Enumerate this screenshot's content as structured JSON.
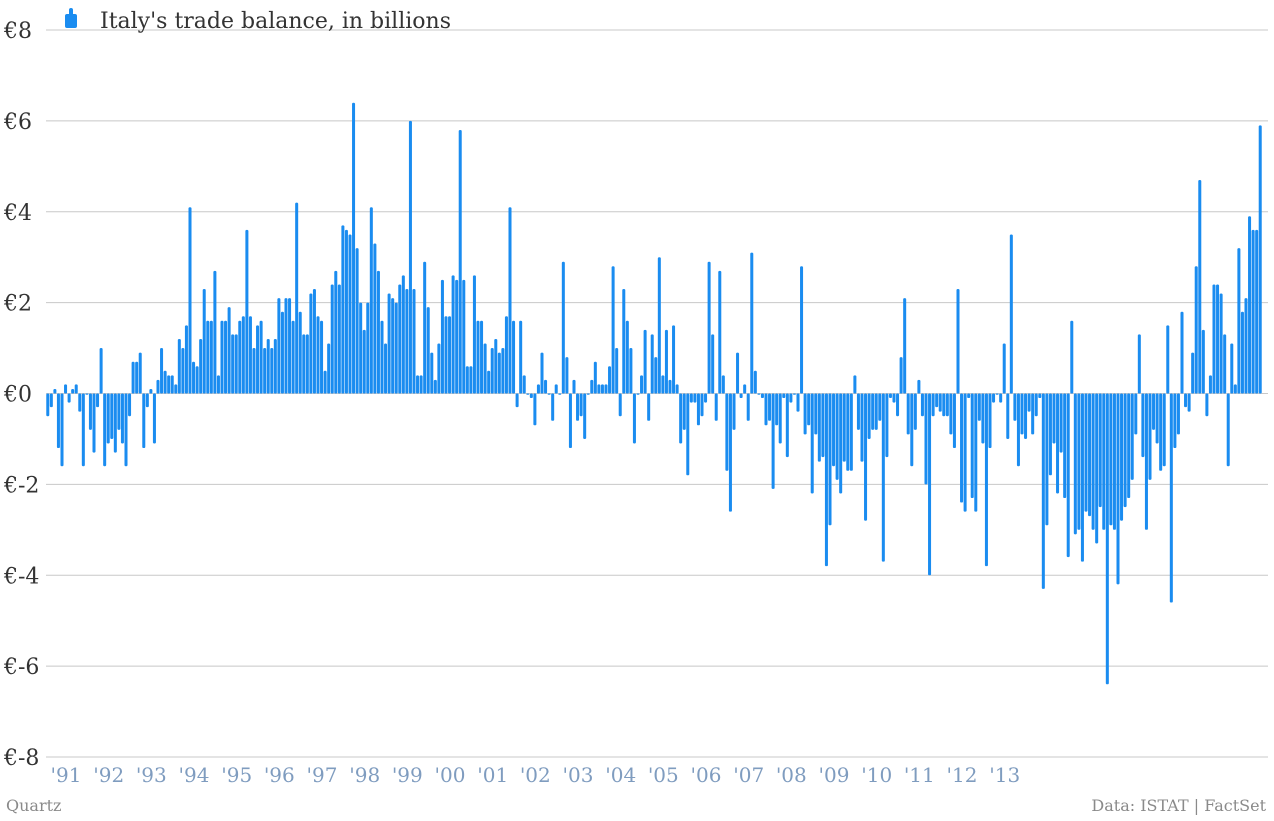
{
  "chart_data": {
    "type": "bar",
    "legend": {
      "label": "Italy's trade balance, in billions",
      "placement": "top-left"
    },
    "y_tick_labels": [
      "€8",
      "€6",
      "€4",
      "€2",
      "€0",
      "€-2",
      "€-4",
      "€-6",
      "€-8"
    ],
    "y_ticks": [
      8,
      6,
      4,
      2,
      0,
      -2,
      -4,
      -6,
      -8
    ],
    "ylim": [
      -8,
      8
    ],
    "x_tick_labels": [
      "'91",
      "'92",
      "'93",
      "'94",
      "'95",
      "'96",
      "'97",
      "'98",
      "'99",
      "'00",
      "'01",
      "'02",
      "'03",
      "'04",
      "'05",
      "'06",
      "'07",
      "'08",
      "'09",
      "'10",
      "'11",
      "'12",
      "'13"
    ],
    "x_tick_years": [
      1991,
      1992,
      1993,
      1994,
      1995,
      1996,
      1997,
      1998,
      1999,
      2000,
      2001,
      2002,
      2003,
      2004,
      2005,
      2006,
      2007,
      2008,
      2009,
      2010,
      2011,
      2012,
      2013
    ],
    "grid": true,
    "color": "#1a8cf0",
    "start": "1991-01",
    "series": [
      {
        "values": [
          -0.5,
          -0.3,
          0.1,
          -1.2,
          -1.6,
          0.2,
          -0.2,
          0.1,
          0.2,
          -0.4,
          -1.6,
          0.0,
          -0.8,
          -1.3,
          -0.3,
          1.0,
          -1.6,
          -1.1,
          -1.0,
          -1.3,
          -0.8,
          -1.1,
          -1.6,
          -0.5,
          0.7,
          0.7,
          0.9,
          -1.2,
          -0.3,
          0.1,
          -1.1,
          0.3,
          1.0,
          0.5,
          0.4,
          0.4,
          0.2,
          1.2,
          1.0,
          1.5,
          4.1,
          0.7,
          0.6,
          1.2,
          2.3,
          1.6,
          1.6,
          2.7,
          0.4,
          1.6,
          1.6,
          1.9,
          1.3,
          1.3,
          1.6,
          1.7,
          3.6,
          1.7,
          1.0,
          1.5,
          1.6,
          1.0,
          1.2,
          1.0,
          1.2,
          2.1,
          1.8,
          2.1,
          2.1,
          1.6,
          4.2,
          1.8,
          1.3,
          1.3,
          2.2,
          2.3,
          1.7,
          1.6,
          0.5,
          1.1,
          2.4,
          2.7,
          2.4,
          3.7,
          3.6,
          3.5,
          6.4,
          3.2,
          2.0,
          1.4,
          2.0,
          4.1,
          3.3,
          2.7,
          1.6,
          1.1,
          2.2,
          2.1,
          2.0,
          2.4,
          2.6,
          2.3,
          6.0,
          2.3,
          0.4,
          0.4,
          2.9,
          1.9,
          0.9,
          0.3,
          1.1,
          2.5,
          1.7,
          1.7,
          2.6,
          2.5,
          5.8,
          2.5,
          0.6,
          0.6,
          2.6,
          1.6,
          1.6,
          1.1,
          0.5,
          1.0,
          1.2,
          0.9,
          1.0,
          1.7,
          4.1,
          1.6,
          -0.3,
          1.6,
          0.4,
          0.0,
          -0.1,
          -0.7,
          0.2,
          0.9,
          0.3,
          0.0,
          -0.6,
          0.2,
          0.0,
          2.9,
          0.8,
          -1.2,
          0.3,
          -0.6,
          -0.5,
          -1.0,
          0.0,
          0.3,
          0.7,
          0.2,
          0.2,
          0.2,
          0.6,
          2.8,
          1.0,
          -0.5,
          2.3,
          1.6,
          1.0,
          -1.1,
          0.0,
          0.4,
          1.4,
          -0.6,
          1.3,
          0.8,
          3.0,
          0.4,
          1.4,
          0.3,
          1.5,
          0.2,
          -1.1,
          -0.8,
          -1.8,
          -0.2,
          -0.2,
          -0.7,
          -0.5,
          -0.2,
          2.9,
          1.3,
          -0.6,
          2.7,
          0.4,
          -1.7,
          -2.6,
          -0.8,
          0.9,
          -0.1,
          0.2,
          -0.6,
          3.1,
          0.5,
          0.0,
          -0.1,
          -0.7,
          -0.6,
          -2.1,
          -0.7,
          -1.1,
          -0.1,
          -1.4,
          -0.2,
          0.0,
          -0.4,
          2.8,
          -0.9,
          -0.7,
          -2.2,
          -0.9,
          -1.5,
          -1.4,
          -3.8,
          -2.9,
          -1.6,
          -1.9,
          -2.2,
          -1.5,
          -1.7,
          -1.7,
          0.4,
          -0.8,
          -1.5,
          -2.8,
          -1.0,
          -0.8,
          -0.8,
          -0.6,
          -3.7,
          -1.4,
          -0.1,
          -0.2,
          -0.5,
          0.8,
          2.1,
          -0.9,
          -1.6,
          -0.8,
          0.3,
          -0.5,
          -2.0,
          -4.0,
          -0.5,
          -0.3,
          -0.4,
          -0.5,
          -0.5,
          -0.9,
          -1.2,
          2.3,
          -2.4,
          -2.6,
          -0.1,
          -2.3,
          -2.6,
          -0.6,
          -1.1,
          -3.8,
          -1.2,
          -0.2,
          0.0,
          -0.2,
          1.1,
          -1.0,
          3.5,
          -0.6,
          -1.6,
          -0.9,
          -1.0,
          -0.4,
          -0.9,
          -0.5,
          -0.1,
          -4.3,
          -2.9,
          -1.8,
          -1.1,
          -2.2,
          -1.3,
          -2.3,
          -3.6,
          1.6,
          -3.1,
          -3.0,
          -3.7,
          -2.6,
          -2.7,
          -3.0,
          -3.3,
          -2.5,
          -3.0,
          -6.4,
          -2.9,
          -3.0,
          -4.2,
          -2.8,
          -2.5,
          -2.3,
          -1.9,
          -0.9,
          1.3,
          -1.4,
          -3.0,
          -1.9,
          -0.8,
          -1.1,
          -1.7,
          -1.6,
          1.5,
          -4.6,
          -1.2,
          -0.9,
          1.8,
          -0.3,
          -0.4,
          0.9,
          2.8,
          4.7,
          1.4,
          -0.5,
          0.4,
          2.4,
          2.4,
          2.2,
          1.3,
          -1.6,
          1.1,
          0.2,
          3.2,
          1.8,
          2.1,
          3.9,
          3.6,
          3.6,
          5.9
        ]
      }
    ]
  },
  "footer": {
    "left": "Quartz",
    "right": "Data: ISTAT | FactSet"
  }
}
